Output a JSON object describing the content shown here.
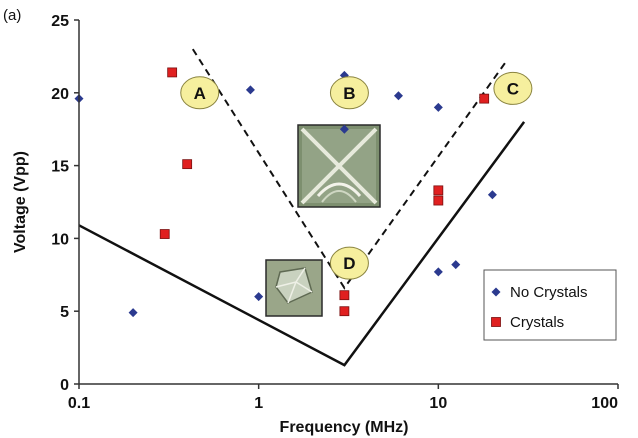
{
  "chart_data": {
    "type": "scatter",
    "panel_label": "(a)",
    "xlabel": "Frequency (MHz)",
    "ylabel": "Voltage (Vpp)",
    "x_scale": "log",
    "xlim": [
      0.1,
      100
    ],
    "ylim": [
      0,
      25
    ],
    "x_ticks": [
      0.1,
      1,
      10,
      100
    ],
    "x_tick_labels": [
      "0.1",
      "1",
      "10",
      "100"
    ],
    "y_ticks": [
      0,
      5,
      10,
      15,
      20,
      25
    ],
    "y_tick_labels": [
      "0",
      "5",
      "10",
      "15",
      "20",
      "25"
    ],
    "grid": false,
    "legend_position": "bottom-right",
    "series": [
      {
        "name": "No Crystals",
        "marker": "diamond",
        "color": "#2b3a8f",
        "points": [
          {
            "x": 0.1,
            "y": 19.6
          },
          {
            "x": 0.2,
            "y": 4.9
          },
          {
            "x": 0.9,
            "y": 20.2
          },
          {
            "x": 1.0,
            "y": 6.0
          },
          {
            "x": 3.0,
            "y": 21.2
          },
          {
            "x": 3.0,
            "y": 17.5
          },
          {
            "x": 6.0,
            "y": 19.8
          },
          {
            "x": 10.0,
            "y": 19.0
          },
          {
            "x": 10.0,
            "y": 7.7
          },
          {
            "x": 12.5,
            "y": 8.2
          },
          {
            "x": 20.0,
            "y": 13.0
          }
        ]
      },
      {
        "name": "Crystals",
        "marker": "square",
        "color": "#e02020",
        "points": [
          {
            "x": 0.33,
            "y": 21.4
          },
          {
            "x": 0.4,
            "y": 15.1
          },
          {
            "x": 0.3,
            "y": 10.3
          },
          {
            "x": 3.0,
            "y": 6.1
          },
          {
            "x": 3.0,
            "y": 5.0
          },
          {
            "x": 10.0,
            "y": 13.3
          },
          {
            "x": 10.0,
            "y": 12.6
          },
          {
            "x": 18.0,
            "y": 19.6
          }
        ]
      }
    ],
    "lines": [
      {
        "style": "solid",
        "points": [
          {
            "x": 0.1,
            "y": 10.9
          },
          {
            "x": 3.0,
            "y": 1.3
          },
          {
            "x": 30.0,
            "y": 18.0
          }
        ]
      },
      {
        "style": "dashed",
        "points": [
          {
            "x": 0.43,
            "y": 23.0
          },
          {
            "x": 3.0,
            "y": 6.6
          },
          {
            "x": 24.0,
            "y": 22.2
          }
        ]
      }
    ],
    "callouts": [
      {
        "label": "A",
        "x": 0.47,
        "y": 20.0
      },
      {
        "label": "B",
        "x": 3.2,
        "y": 20.0
      },
      {
        "label": "C",
        "x": 26.0,
        "y": 20.3
      },
      {
        "label": "D",
        "x": 3.2,
        "y": 8.3
      }
    ],
    "colors": {
      "callout_fill": "#f6ef9e",
      "callout_stroke": "#8a8440"
    }
  }
}
